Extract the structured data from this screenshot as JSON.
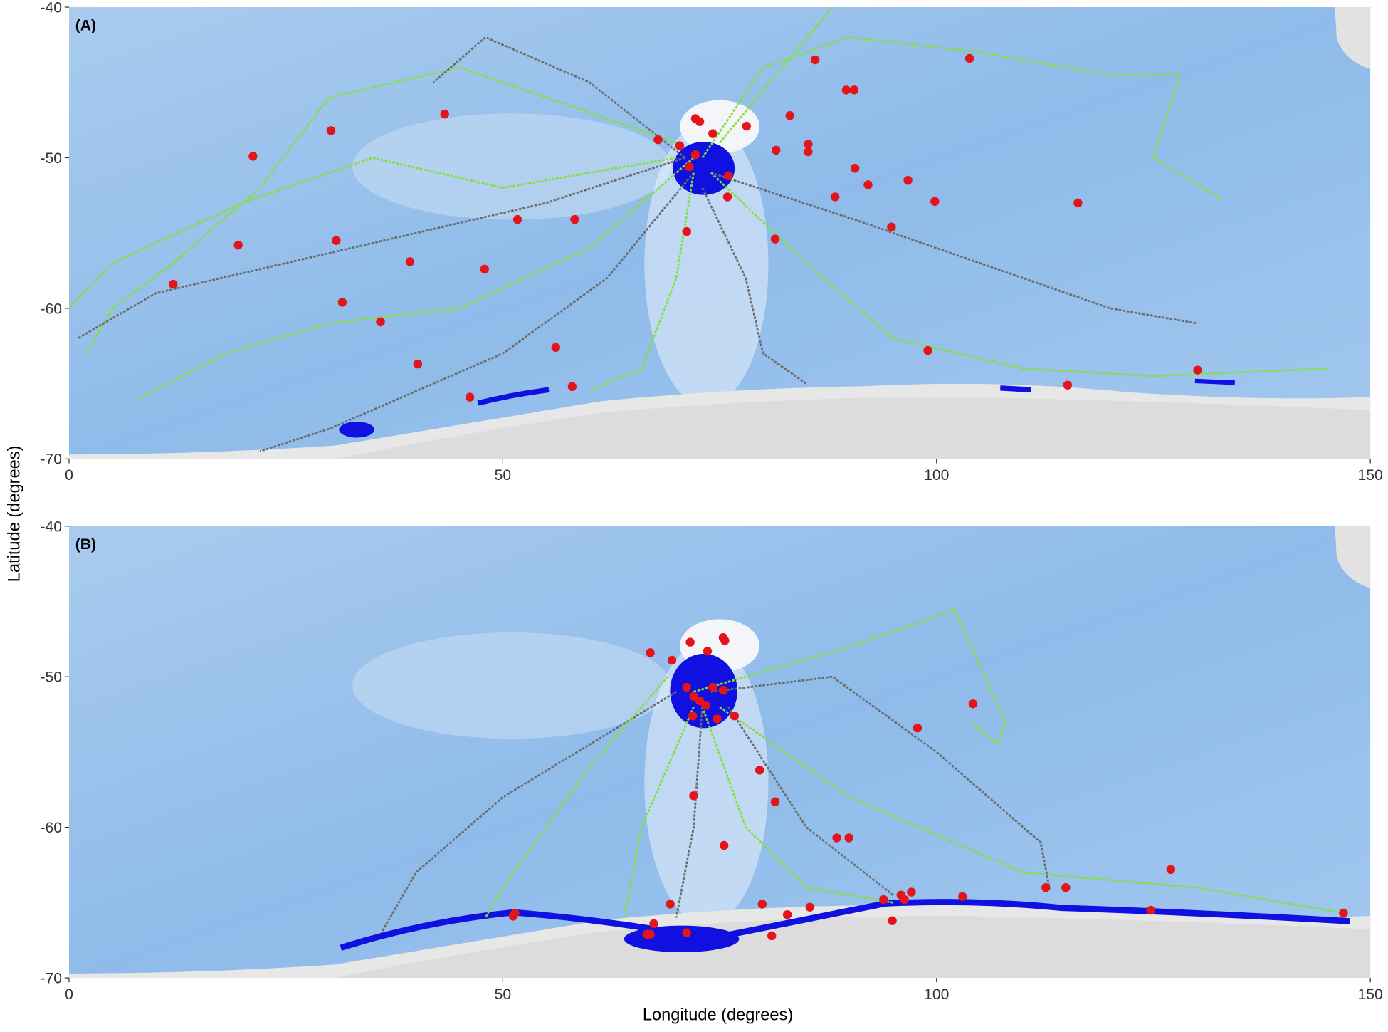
{
  "chart_data": [
    {
      "type": "map",
      "panel_label": "(A)",
      "ylabel": "Latitude (degrees)",
      "xlim": [
        0,
        150
      ],
      "ylim": [
        -70,
        -40
      ],
      "xticks": [
        0,
        50,
        100,
        150
      ],
      "yticks": [
        -70,
        -60,
        -50,
        -40
      ],
      "tracks": [
        {
          "color": "#7ee335",
          "x": [
            70,
            55,
            45,
            30,
            22,
            12,
            5,
            2
          ],
          "y": [
            -49,
            -46,
            -44,
            -46,
            -52,
            -57,
            -60,
            -63
          ]
        },
        {
          "color": "#6b6b6b",
          "x": [
            71,
            55,
            40,
            25,
            10,
            1
          ],
          "y": [
            -50,
            -53,
            -55,
            -57,
            -59,
            -62
          ]
        },
        {
          "color": "#7ee335",
          "x": [
            72,
            60,
            45,
            30,
            18,
            8
          ],
          "y": [
            -50,
            -56,
            -60,
            -61,
            -63,
            -66
          ]
        },
        {
          "color": "#6b6b6b",
          "x": [
            72,
            62,
            50,
            38,
            30,
            22
          ],
          "y": [
            -51,
            -58,
            -63,
            -66,
            -68,
            -69.5
          ]
        },
        {
          "color": "#7ee335",
          "x": [
            73,
            80,
            90,
            105,
            120,
            128,
            125,
            133
          ],
          "y": [
            -50,
            -44,
            -42,
            -43,
            -44.5,
            -44.5,
            -50,
            -52.8
          ]
        },
        {
          "color": "#6b6b6b",
          "x": [
            74,
            90,
            105,
            120,
            130
          ],
          "y": [
            -51,
            -54,
            -57,
            -60,
            -61
          ]
        },
        {
          "color": "#7ee335",
          "x": [
            74,
            85,
            95,
            110,
            125,
            145
          ],
          "y": [
            -51,
            -57,
            -62,
            -64,
            -64.5,
            -64
          ]
        },
        {
          "color": "#6b6b6b",
          "x": [
            73,
            78,
            80,
            85
          ],
          "y": [
            -52,
            -58,
            -63,
            -65
          ]
        },
        {
          "color": "#7ee335",
          "x": [
            72,
            70,
            66,
            60
          ],
          "y": [
            -51,
            -58,
            -64,
            -65.5
          ]
        },
        {
          "color": "#7ee335",
          "x": [
            75,
            88
          ],
          "y": [
            -49,
            -40
          ]
        },
        {
          "color": "#6b6b6b",
          "x": [
            71,
            60,
            48,
            42
          ],
          "y": [
            -50,
            -45,
            -42,
            -45
          ]
        },
        {
          "color": "#7ee335",
          "x": [
            70,
            50,
            35,
            20,
            5,
            0
          ],
          "y": [
            -50,
            -52,
            -50,
            -53,
            -57,
            -60
          ]
        }
      ],
      "points": {
        "color": "#e3151b",
        "x": [
          21.2,
          30.2,
          43.3,
          86.0,
          103.8,
          89.6,
          90.5,
          19.5,
          30.8,
          39.3,
          47.9,
          51.7,
          58.3,
          12.0,
          31.5,
          35.9,
          40.2,
          56.1,
          46.2,
          58.0,
          67.9,
          72.2,
          72.7,
          74.2,
          70.4,
          72.2,
          71.5,
          76.0,
          75.9,
          71.2,
          78.1,
          83.1,
          81.5,
          85.2,
          85.2,
          81.4,
          88.3,
          90.6,
          92.1,
          96.7,
          94.8,
          99.8,
          116.3,
          99.0,
          115.1,
          130.1
        ],
        "y": [
          -49.9,
          -48.2,
          -47.1,
          -43.5,
          -43.4,
          -45.5,
          -45.5,
          -55.8,
          -55.5,
          -56.9,
          -57.4,
          -54.1,
          -54.1,
          -58.4,
          -59.6,
          -60.9,
          -63.7,
          -62.6,
          -65.9,
          -65.2,
          -48.8,
          -47.4,
          -47.6,
          -48.4,
          -49.2,
          -49.8,
          -50.6,
          -51.2,
          -52.6,
          -54.9,
          -47.9,
          -47.2,
          -49.5,
          -49.1,
          -49.6,
          -55.4,
          -52.6,
          -50.7,
          -51.8,
          -51.5,
          -54.6,
          -52.9,
          -53.0,
          -62.8,
          -65.1,
          -64.1
        ]
      }
    },
    {
      "type": "map",
      "panel_label": "(B)",
      "xlabel": "Longitude (degrees)",
      "xlim": [
        0,
        150
      ],
      "ylim": [
        -70,
        -40
      ],
      "xticks": [
        0,
        50,
        100,
        150
      ],
      "yticks": [
        -70,
        -60,
        -50,
        -40
      ],
      "tracks": [
        {
          "color": "#7ee335",
          "x": [
            72,
            90,
            100,
            102,
            108,
            107,
            104
          ],
          "y": [
            -51,
            -48,
            -46,
            -45.5,
            -53,
            -54.5,
            -53
          ]
        },
        {
          "color": "#6b6b6b",
          "x": [
            70,
            50,
            40,
            36
          ],
          "y": [
            -51,
            -58,
            -63,
            -67
          ]
        },
        {
          "color": "#7ee335",
          "x": [
            69,
            60,
            50,
            48
          ],
          "y": [
            -50,
            -56,
            -64,
            -66
          ]
        },
        {
          "color": "#7ee335",
          "x": [
            73,
            78,
            85,
            95
          ],
          "y": [
            -52,
            -60,
            -64,
            -65
          ]
        },
        {
          "color": "#6b6b6b",
          "x": [
            73,
            72,
            70
          ],
          "y": [
            -52,
            -60,
            -66
          ]
        },
        {
          "color": "#7ee335",
          "x": [
            75,
            90,
            110,
            130,
            147
          ],
          "y": [
            -52,
            -58,
            -63,
            -64,
            -65.7
          ]
        },
        {
          "color": "#6b6b6b",
          "x": [
            74,
            88,
            100,
            112,
            113
          ],
          "y": [
            -51,
            -50,
            -55,
            -61,
            -64
          ]
        },
        {
          "color": "#7ee335",
          "x": [
            72,
            66,
            64
          ],
          "y": [
            -52,
            -60,
            -66
          ]
        },
        {
          "color": "#6b6b6b",
          "x": [
            76,
            85,
            95
          ],
          "y": [
            -52,
            -60,
            -64.5
          ]
        }
      ],
      "points": {
        "color": "#e3151b",
        "x": [
          104.2,
          97.8,
          67.0,
          69.5,
          71.6,
          75.4,
          75.6,
          73.6,
          71.2,
          72.0,
          72.7,
          74.2,
          75.4,
          73.4,
          74.7,
          76.7,
          71.9,
          79.6,
          81.4,
          72.0,
          75.5,
          88.5,
          89.9,
          127.0,
          112.6,
          114.9,
          124.7,
          146.9,
          51.4,
          51.2,
          67.4,
          66.6,
          67.0,
          69.3,
          71.2,
          79.9,
          82.8,
          85.4,
          81.0,
          93.9,
          94.9,
          95.9,
          97.1,
          96.3,
          103.0
        ],
        "y": [
          -51.8,
          -53.4,
          -48.4,
          -48.9,
          -47.7,
          -47.4,
          -47.6,
          -48.3,
          -50.7,
          -51.3,
          -51.6,
          -50.7,
          -50.9,
          -51.9,
          -52.8,
          -52.6,
          -52.6,
          -56.2,
          -58.3,
          -57.9,
          -61.2,
          -60.7,
          -60.7,
          -62.8,
          -64.0,
          -64.0,
          -65.5,
          -65.7,
          -65.7,
          -65.9,
          -66.4,
          -67.1,
          -67.1,
          -65.1,
          -67.0,
          -65.1,
          -65.8,
          -65.3,
          -67.2,
          -64.8,
          -66.2,
          -64.5,
          -64.3,
          -64.8,
          -64.6
        ]
      }
    }
  ]
}
